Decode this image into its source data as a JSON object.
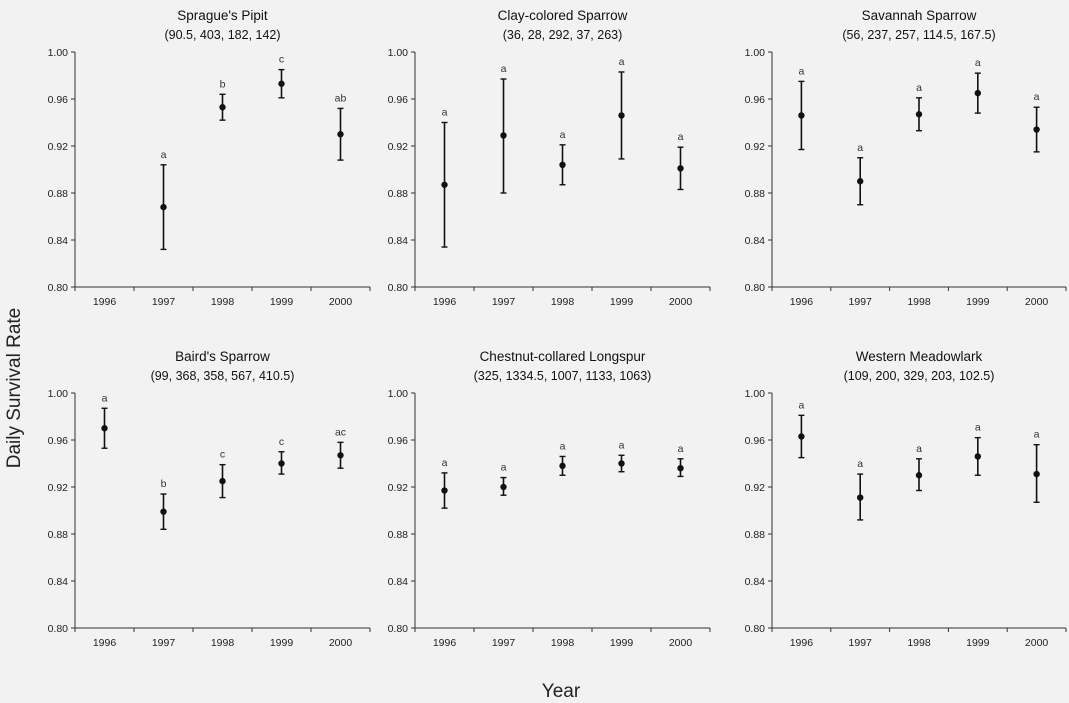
{
  "figure": {
    "ylabel": "Daily Survival Rate",
    "xlabel": "Year"
  },
  "chart_data": [
    {
      "type": "scatter",
      "title": "Sprague's Pipit",
      "subtitle": "(90.5, 403, 182, 142)",
      "categories": [
        "1996",
        "1997",
        "1998",
        "1999",
        "2000"
      ],
      "yticks": [
        "0.80",
        "0.84",
        "0.88",
        "0.92",
        "0.96",
        "1.00"
      ],
      "ylim": [
        0.8,
        1.0
      ],
      "points": [
        {
          "x": "1997",
          "y": 0.868,
          "lower": 0.832,
          "upper": 0.904,
          "label": "a"
        },
        {
          "x": "1998",
          "y": 0.953,
          "lower": 0.942,
          "upper": 0.964,
          "label": "b"
        },
        {
          "x": "1999",
          "y": 0.973,
          "lower": 0.961,
          "upper": 0.985,
          "label": "c"
        },
        {
          "x": "2000",
          "y": 0.93,
          "lower": 0.908,
          "upper": 0.952,
          "label": "ab"
        }
      ]
    },
    {
      "type": "scatter",
      "title": "Clay-colored Sparrow",
      "subtitle": "(36, 28, 292, 37, 263)",
      "categories": [
        "1996",
        "1997",
        "1998",
        "1999",
        "2000"
      ],
      "yticks": [
        "0.80",
        "0.84",
        "0.88",
        "0.92",
        "0.96",
        "1.00"
      ],
      "ylim": [
        0.8,
        1.0
      ],
      "points": [
        {
          "x": "1996",
          "y": 0.887,
          "lower": 0.834,
          "upper": 0.94,
          "label": "a"
        },
        {
          "x": "1997",
          "y": 0.929,
          "lower": 0.88,
          "upper": 0.977,
          "label": "a"
        },
        {
          "x": "1998",
          "y": 0.904,
          "lower": 0.887,
          "upper": 0.921,
          "label": "a"
        },
        {
          "x": "1999",
          "y": 0.946,
          "lower": 0.909,
          "upper": 0.983,
          "label": "a"
        },
        {
          "x": "2000",
          "y": 0.901,
          "lower": 0.883,
          "upper": 0.919,
          "label": "a"
        }
      ]
    },
    {
      "type": "scatter",
      "title": "Savannah Sparrow",
      "subtitle": "(56, 237, 257, 114.5, 167.5)",
      "categories": [
        "1996",
        "1997",
        "1998",
        "1999",
        "2000"
      ],
      "yticks": [
        "0.80",
        "0.84",
        "0.88",
        "0.92",
        "0.96",
        "1.00"
      ],
      "ylim": [
        0.8,
        1.0
      ],
      "points": [
        {
          "x": "1996",
          "y": 0.946,
          "lower": 0.917,
          "upper": 0.975,
          "label": "a"
        },
        {
          "x": "1997",
          "y": 0.89,
          "lower": 0.87,
          "upper": 0.91,
          "label": "a"
        },
        {
          "x": "1998",
          "y": 0.947,
          "lower": 0.933,
          "upper": 0.961,
          "label": "a"
        },
        {
          "x": "1999",
          "y": 0.965,
          "lower": 0.948,
          "upper": 0.982,
          "label": "a"
        },
        {
          "x": "2000",
          "y": 0.934,
          "lower": 0.915,
          "upper": 0.953,
          "label": "a"
        }
      ]
    },
    {
      "type": "scatter",
      "title": "Baird's Sparrow",
      "subtitle": "(99, 368, 358, 567, 410.5)",
      "categories": [
        "1996",
        "1997",
        "1998",
        "1999",
        "2000"
      ],
      "yticks": [
        "0.80",
        "0.84",
        "0.88",
        "0.92",
        "0.96",
        "1.00"
      ],
      "ylim": [
        0.8,
        1.0
      ],
      "points": [
        {
          "x": "1996",
          "y": 0.97,
          "lower": 0.953,
          "upper": 0.987,
          "label": "a"
        },
        {
          "x": "1997",
          "y": 0.899,
          "lower": 0.884,
          "upper": 0.914,
          "label": "b"
        },
        {
          "x": "1998",
          "y": 0.925,
          "lower": 0.911,
          "upper": 0.939,
          "label": "c"
        },
        {
          "x": "1999",
          "y": 0.94,
          "lower": 0.931,
          "upper": 0.95,
          "label": "c"
        },
        {
          "x": "2000",
          "y": 0.947,
          "lower": 0.936,
          "upper": 0.958,
          "label": "ac"
        }
      ]
    },
    {
      "type": "scatter",
      "title": "Chestnut-collared Longspur",
      "subtitle": "(325, 1334.5, 1007, 1133, 1063)",
      "categories": [
        "1996",
        "1997",
        "1998",
        "1999",
        "2000"
      ],
      "yticks": [
        "0.80",
        "0.84",
        "0.88",
        "0.92",
        "0.96",
        "1.00"
      ],
      "ylim": [
        0.8,
        1.0
      ],
      "points": [
        {
          "x": "1996",
          "y": 0.917,
          "lower": 0.902,
          "upper": 0.932,
          "label": "a"
        },
        {
          "x": "1997",
          "y": 0.92,
          "lower": 0.913,
          "upper": 0.928,
          "label": "a"
        },
        {
          "x": "1998",
          "y": 0.938,
          "lower": 0.93,
          "upper": 0.946,
          "label": "a"
        },
        {
          "x": "1999",
          "y": 0.94,
          "lower": 0.933,
          "upper": 0.947,
          "label": "a"
        },
        {
          "x": "2000",
          "y": 0.936,
          "lower": 0.929,
          "upper": 0.944,
          "label": "a"
        }
      ]
    },
    {
      "type": "scatter",
      "title": "Western Meadowlark",
      "subtitle": "(109, 200, 329, 203, 102.5)",
      "categories": [
        "1996",
        "1997",
        "1998",
        "1999",
        "2000"
      ],
      "yticks": [
        "0.80",
        "0.84",
        "0.88",
        "0.92",
        "0.96",
        "1.00"
      ],
      "ylim": [
        0.8,
        1.0
      ],
      "points": [
        {
          "x": "1996",
          "y": 0.963,
          "lower": 0.945,
          "upper": 0.981,
          "label": "a"
        },
        {
          "x": "1997",
          "y": 0.911,
          "lower": 0.892,
          "upper": 0.931,
          "label": "a"
        },
        {
          "x": "1998",
          "y": 0.93,
          "lower": 0.917,
          "upper": 0.944,
          "label": "a"
        },
        {
          "x": "1999",
          "y": 0.946,
          "lower": 0.93,
          "upper": 0.962,
          "label": "a"
        },
        {
          "x": "2000",
          "y": 0.931,
          "lower": 0.907,
          "upper": 0.956,
          "label": "a"
        }
      ]
    }
  ]
}
